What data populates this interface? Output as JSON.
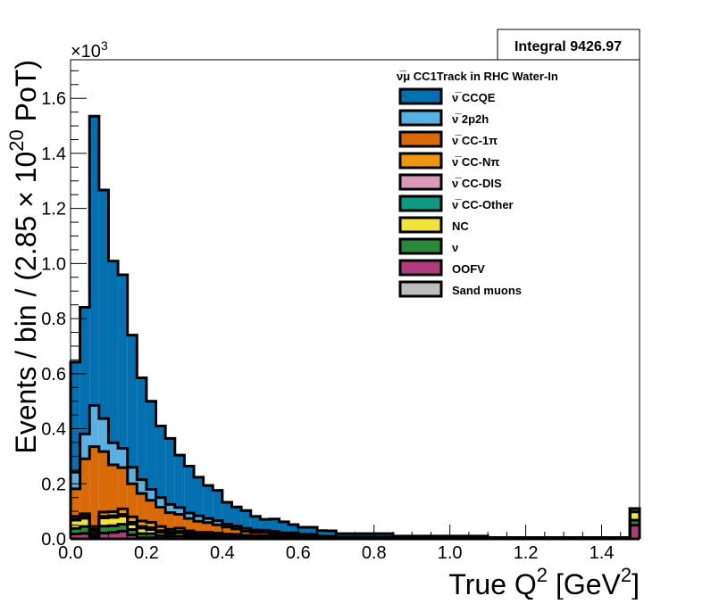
{
  "chart_data": {
    "type": "area",
    "stacked": true,
    "histogram": true,
    "title": "",
    "xlabel_main": "True Q",
    "xlabel_sup": "2",
    "xlabel_unit": " [GeV",
    "xlabel_unit_sup": "2",
    "xlabel_close": "]",
    "ylabel_main": "Events / bin / (2.85 × 10",
    "ylabel_sup": "20",
    "ylabel_close": " PoT)",
    "y_multiplier_prefix": "×10",
    "y_multiplier_exp": "3",
    "xlim": [
      0,
      1.5
    ],
    "ylim": [
      0,
      1.74
    ],
    "bin_width": 0.025,
    "x_ticks": [
      "0.0",
      "0.2",
      "0.4",
      "0.6",
      "0.8",
      "1.0",
      "1.2",
      "1.4"
    ],
    "x_tick_values": [
      0,
      0.2,
      0.4,
      0.6,
      0.8,
      1.0,
      1.2,
      1.4
    ],
    "y_ticks": [
      "0.0",
      "0.2",
      "0.4",
      "0.6",
      "0.8",
      "1.0",
      "1.2",
      "1.4",
      "1.6"
    ],
    "y_tick_values": [
      0,
      0.2,
      0.4,
      0.6,
      0.8,
      1.0,
      1.2,
      1.4,
      1.6
    ],
    "stats_box": "Integral 9426.97",
    "legend_header": "ν̅μ CC1Track in RHC Water-In",
    "legend_position": "top-right",
    "stack_totals": [
      0.64,
      0.84,
      1.53,
      1.27,
      1.03,
      0.97,
      0.76,
      0.59,
      0.5,
      0.41,
      0.36,
      0.3,
      0.26,
      0.22,
      0.19,
      0.17,
      0.13,
      0.11,
      0.1,
      0.08,
      0.07,
      0.07,
      0.06,
      0.05,
      0.04,
      0.04,
      0.03,
      0.03,
      0.02,
      0.02,
      0.02,
      0.02,
      0.02,
      0.02,
      0.01,
      0.01,
      0.01,
      0.01,
      0.01,
      0.01,
      0.01,
      0.01,
      0.01,
      0.01,
      0.005,
      0.005,
      0.005,
      0.005,
      0.005,
      0.005,
      0.005,
      0.005,
      0.005,
      0.005,
      0.005,
      0.005,
      0.005,
      0.005,
      0.005,
      0.11
    ],
    "series": [
      {
        "name": "ν̅ CCQE",
        "color": "#0570b0",
        "bin_from": 0,
        "values": [
          0.4,
          0.46,
          1.05,
          0.83,
          0.66,
          0.63,
          0.48,
          0.37,
          0.32,
          0.26,
          0.24,
          0.19,
          0.17,
          0.14,
          0.12,
          0.11,
          0.08,
          0.07,
          0.065,
          0.05,
          0.04,
          0.045,
          0.04,
          0.03,
          0.025,
          0.025,
          0.02,
          0.02,
          0.012,
          0.012,
          0.012,
          0.012,
          0.012,
          0.012,
          0.006,
          0.006,
          0.006,
          0.006,
          0.006,
          0.006,
          0.006,
          0.006,
          0.006,
          0.006,
          0.003,
          0.003,
          0.003,
          0.003,
          0.003,
          0.003,
          0.003,
          0.003,
          0.003,
          0.003,
          0.003,
          0.003,
          0.003,
          0.003,
          0.003,
          0.0
        ]
      },
      {
        "name": "ν̅ 2p2h",
        "color": "#5ab0e0",
        "bin_from": 0,
        "values": [
          0.06,
          0.09,
          0.15,
          0.12,
          0.08,
          0.07,
          0.06,
          0.05,
          0.04,
          0.035,
          0.03,
          0.025,
          0.02,
          0.02,
          0.015,
          0.015,
          0.01,
          0.01,
          0.01,
          0.008,
          0.007,
          0.007,
          0.006,
          0.006,
          0.004,
          0.004,
          0.003,
          0.003,
          0.002,
          0.002,
          0.002,
          0.002,
          0.002,
          0.002,
          0.001,
          0.001,
          0.001,
          0.001,
          0.001,
          0.001,
          0.001,
          0.001,
          0.001,
          0.001,
          0.0005,
          0.0005,
          0.0005,
          0.0005,
          0.0005,
          0.0005,
          0.0005,
          0.0005,
          0.0005,
          0.0005,
          0.0005,
          0.0005,
          0.0005,
          0.0005,
          0.0005,
          0.0
        ]
      },
      {
        "name": "ν̅ CC-1π",
        "color": "#d86a0a",
        "bin_from": 0,
        "values": [
          0.1,
          0.2,
          0.29,
          0.22,
          0.17,
          0.15,
          0.12,
          0.1,
          0.08,
          0.07,
          0.06,
          0.05,
          0.045,
          0.04,
          0.035,
          0.03,
          0.025,
          0.02,
          0.015,
          0.012,
          0.012,
          0.01,
          0.008,
          0.008,
          0.006,
          0.006,
          0.004,
          0.004,
          0.003,
          0.003,
          0.003,
          0.003,
          0.003,
          0.003,
          0.002,
          0.002,
          0.002,
          0.002,
          0.002,
          0.002,
          0.002,
          0.002,
          0.002,
          0.002,
          0.001,
          0.001,
          0.001,
          0.001,
          0.001,
          0.001,
          0.001,
          0.001,
          0.001,
          0.001,
          0.001,
          0.001,
          0.001,
          0.001,
          0.001,
          0.0
        ]
      },
      {
        "name": "ν̅ CC-Nπ",
        "color": "#ee9512",
        "bin_from": 0,
        "values": [
          0.01,
          0.01,
          0.01,
          0.015,
          0.015,
          0.02,
          0.02,
          0.02,
          0.02,
          0.015,
          0.01,
          0.012,
          0.008,
          0.008,
          0.008,
          0.006,
          0.006,
          0.005,
          0.004,
          0.004,
          0.004,
          0.003,
          0.002,
          0.002,
          0.002,
          0.002,
          0.002,
          0.001,
          0.001,
          0.001,
          0.001,
          0.001,
          0.001,
          0.001,
          0.0005,
          0.0005,
          0.0005,
          0.0005,
          0.0005,
          0.0005,
          0.0005,
          0.0005,
          0.0005,
          0.0005,
          0.0002,
          0.0002,
          0.0002,
          0.0002,
          0.0002,
          0.0002,
          0.0002,
          0.0002,
          0.0002,
          0.0002,
          0.0002,
          0.0002,
          0.0002,
          0.0002,
          0.0002,
          0.0
        ]
      },
      {
        "name": "ν̅ CC-DIS",
        "color": "#d89ab8",
        "bin_from": 0,
        "values": [
          0.002,
          0.003,
          0.003,
          0.003,
          0.003,
          0.003,
          0.003,
          0.003,
          0.003,
          0.003,
          0.003,
          0.003,
          0.003,
          0.002,
          0.002,
          0.002,
          0.002,
          0.002,
          0.002,
          0.001,
          0.001,
          0.001,
          0.001,
          0.001,
          0.001,
          0.001,
          0.001,
          0.001,
          0.001,
          0.001,
          0.001,
          0.001,
          0.001,
          0.001,
          0.0005,
          0.0005,
          0.0005,
          0.0005,
          0.0005,
          0.0005,
          0.0005,
          0.0005,
          0.0005,
          0.0005,
          0.0002,
          0.0002,
          0.0002,
          0.0002,
          0.0002,
          0.0002,
          0.0002,
          0.0002,
          0.0002,
          0.0002,
          0.0002,
          0.0002,
          0.0002,
          0.0002,
          0.0002,
          0.0
        ]
      },
      {
        "name": "ν̅ CC-Other",
        "color": "#0f9882",
        "bin_from": 0,
        "values": [
          0.002,
          0.003,
          0.003,
          0.003,
          0.003,
          0.003,
          0.003,
          0.003,
          0.003,
          0.003,
          0.002,
          0.002,
          0.002,
          0.002,
          0.002,
          0.002,
          0.002,
          0.001,
          0.001,
          0.001,
          0.001,
          0.001,
          0.001,
          0.001,
          0.001,
          0.001,
          0.0,
          0.0,
          0.0,
          0.0,
          0.0,
          0.0,
          0.0,
          0.0,
          0.0,
          0.0,
          0.0,
          0.0,
          0.0,
          0.0,
          0.0,
          0.0,
          0.0,
          0.0,
          0.0,
          0.0,
          0.0,
          0.0,
          0.0,
          0.0,
          0.0,
          0.0,
          0.0,
          0.0,
          0.0,
          0.0,
          0.0,
          0.0,
          0.0,
          0.012
        ]
      },
      {
        "name": "NC",
        "color": "#f2e33a",
        "bin_from": 0,
        "values": [
          0.03,
          0.03,
          0.01,
          0.03,
          0.03,
          0.03,
          0.02,
          0.02,
          0.015,
          0.012,
          0.01,
          0.012,
          0.008,
          0.006,
          0.006,
          0.006,
          0.004,
          0.004,
          0.003,
          0.003,
          0.003,
          0.002,
          0.002,
          0.002,
          0.001,
          0.001,
          0.0,
          0.0,
          0.0,
          0.0,
          0.0,
          0.0,
          0.0,
          0.0,
          0.0,
          0.0,
          0.0,
          0.0,
          0.0,
          0.0,
          0.0,
          0.0,
          0.0,
          0.0,
          0.0,
          0.0,
          0.0,
          0.0,
          0.0,
          0.0,
          0.0,
          0.0,
          0.0,
          0.0,
          0.0,
          0.0,
          0.0,
          0.0,
          0.0,
          0.03
        ]
      },
      {
        "name": "ν",
        "color": "#2a8a3a",
        "bin_from": 0,
        "values": [
          0.02,
          0.025,
          0.01,
          0.025,
          0.025,
          0.025,
          0.02,
          0.015,
          0.015,
          0.01,
          0.01,
          0.01,
          0.008,
          0.006,
          0.006,
          0.005,
          0.004,
          0.004,
          0.003,
          0.003,
          0.003,
          0.003,
          0.002,
          0.002,
          0.002,
          0.002,
          0.0,
          0.0,
          0.0,
          0.0,
          0.0,
          0.0,
          0.0,
          0.0,
          0.0,
          0.0,
          0.0,
          0.0,
          0.0,
          0.0,
          0.0,
          0.0,
          0.0,
          0.0,
          0.0,
          0.0,
          0.0,
          0.0,
          0.0,
          0.0,
          0.0,
          0.0,
          0.0,
          0.0,
          0.0,
          0.0,
          0.0,
          0.0,
          0.0,
          0.018
        ]
      },
      {
        "name": "OOFV",
        "color": "#b03c7e",
        "bin_from": 0,
        "values": [
          0.018,
          0.02,
          0.009,
          0.021,
          0.023,
          0.028,
          0.014,
          0.004,
          0.004,
          0.002,
          0.0,
          0.0,
          0.0,
          0.0,
          0.0,
          0.0,
          0.0,
          0.0,
          0.0,
          0.0,
          0.0,
          0.0,
          0.0,
          0.0,
          0.0,
          0.0,
          0.0,
          0.0,
          0.0,
          0.0,
          0.0,
          0.0,
          0.0,
          0.0,
          0.0,
          0.0,
          0.0,
          0.0,
          0.0,
          0.0,
          0.0,
          0.0,
          0.0,
          0.0,
          0.0,
          0.0,
          0.0,
          0.0,
          0.0,
          0.0,
          0.0,
          0.0,
          0.0,
          0.0,
          0.0,
          0.0,
          0.0,
          0.0,
          0.0,
          0.05
        ]
      },
      {
        "name": "Sand muons",
        "color": "#bdbdbd",
        "bin_from": 0,
        "values": [
          0.0,
          0.0,
          0.0,
          0.0,
          0.0,
          0.0,
          0.0,
          0.0,
          0.0,
          0.0,
          0.0,
          0.0,
          0.0,
          0.0,
          0.0,
          0.0,
          0.0,
          0.0,
          0.0,
          0.0,
          0.0,
          0.0,
          0.0,
          0.0,
          0.0,
          0.0,
          0.0,
          0.0,
          0.0,
          0.0,
          0.0,
          0.0,
          0.0,
          0.0,
          0.0,
          0.0,
          0.0,
          0.0,
          0.0,
          0.0,
          0.0,
          0.0,
          0.0,
          0.0,
          0.0,
          0.0,
          0.0,
          0.0,
          0.0,
          0.0,
          0.0,
          0.0,
          0.0,
          0.0,
          0.0,
          0.0,
          0.0,
          0.0,
          0.0,
          0.0
        ]
      }
    ]
  }
}
